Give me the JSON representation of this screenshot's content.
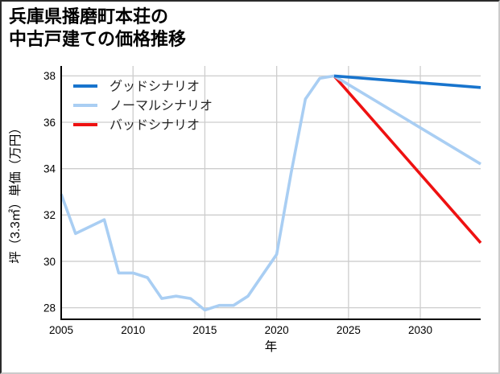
{
  "title": {
    "lines": [
      "兵庫県播磨町本荘の",
      "中古戸建ての価格推移"
    ]
  },
  "chart_data": {
    "type": "line",
    "title": "兵庫県播磨町本荘の中古戸建ての価格推移",
    "xlabel": "年",
    "ylabel": "坪（3.3㎡）単価（万円）",
    "xlim": [
      2005,
      2034.2
    ],
    "ylim": [
      27.5,
      38.43
    ],
    "x_ticks": [
      2005,
      2010,
      2015,
      2020,
      2025,
      2030
    ],
    "y_ticks": [
      28,
      30,
      32,
      34,
      36,
      38
    ],
    "grid": true,
    "grid_color": "#cdcdcd",
    "axis_color": "#000000",
    "background_color": "#ffffff",
    "legend_position": "upper-left",
    "series": [
      {
        "key": "good",
        "name": "グッドシナリオ",
        "color": "#1874cd",
        "x": [
          2024,
          2034.2
        ],
        "values": [
          38.0,
          37.5
        ]
      },
      {
        "key": "normal",
        "name": "ノーマルシナリオ",
        "color": "#a9cef3",
        "x": [
          2005,
          2006,
          2007,
          2008,
          2009,
          2010,
          2011,
          2012,
          2013,
          2014,
          2015,
          2016,
          2017,
          2018,
          2019,
          2020,
          2021,
          2022,
          2023,
          2024,
          2034.2
        ],
        "values": [
          32.9,
          31.2,
          31.5,
          31.8,
          29.5,
          29.5,
          29.3,
          28.4,
          28.5,
          28.4,
          27.9,
          28.1,
          28.1,
          28.5,
          29.4,
          30.3,
          33.8,
          37.0,
          37.9,
          38.0,
          34.2
        ]
      },
      {
        "key": "bad",
        "name": "バッドシナリオ",
        "color": "#ee1111",
        "x": [
          2024,
          2034.2
        ],
        "values": [
          38.0,
          30.8
        ]
      }
    ]
  }
}
